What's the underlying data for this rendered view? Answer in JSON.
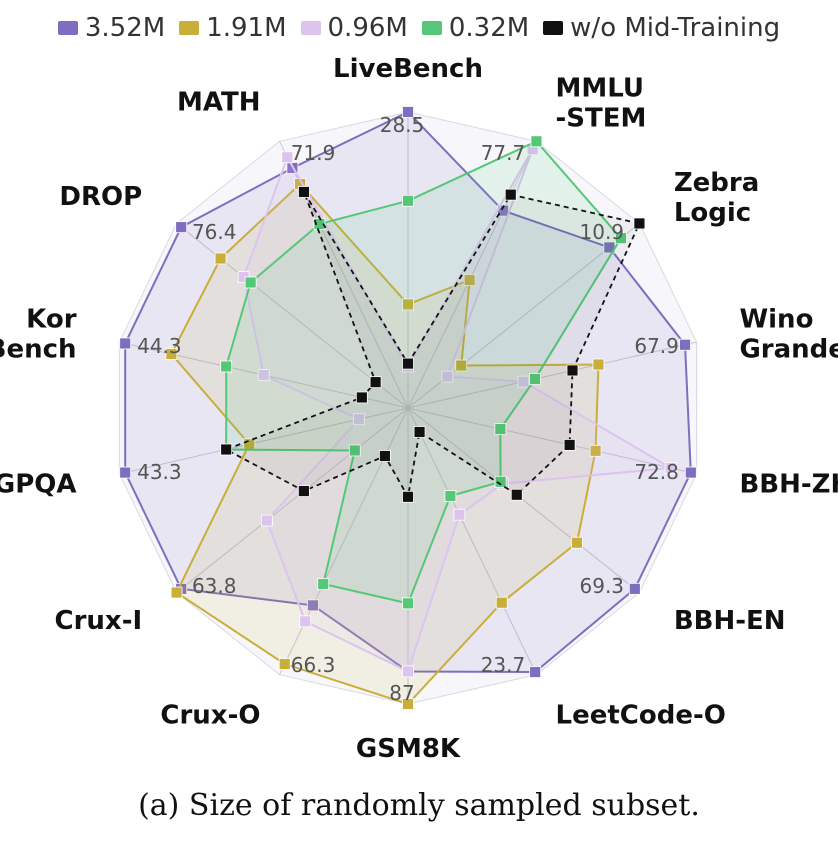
{
  "chart_data": {
    "type": "radar",
    "axes": [
      "LiveBench",
      "MMLU\n-STEM",
      "Zebra\nLogic",
      "Wino\nGrande",
      "BBH-ZH",
      "BBH-EN",
      "LeetCode-O",
      "GSM8K",
      "Crux-O",
      "Crux-I",
      "GPQA",
      "Kor\nBench",
      "DROP",
      "MATH"
    ],
    "axis_max_labels": [
      "28.5",
      "77.7",
      "10.9",
      "67.9",
      "72.8",
      "69.3",
      "23.7",
      "87",
      "66.3",
      "63.8",
      "43.3",
      "44.3",
      "76.4",
      "71.9"
    ],
    "series": [
      {
        "name": "3.52M",
        "color": "#7f6dbf",
        "values": [
          1.0,
          0.74,
          0.87,
          0.96,
          0.98,
          0.98,
          0.99,
          0.89,
          0.74,
          0.98,
          0.98,
          0.98,
          0.98,
          0.9
        ]
      },
      {
        "name": "1.91M",
        "color": "#c9ae3a",
        "values": [
          0.35,
          0.48,
          0.23,
          0.66,
          0.65,
          0.73,
          0.73,
          1.0,
          0.96,
          1.0,
          0.55,
          0.82,
          0.81,
          0.84
        ]
      },
      {
        "name": "0.96M",
        "color": "#dcc4ee",
        "values": [
          0.14,
          0.97,
          0.17,
          0.4,
          0.91,
          0.41,
          0.4,
          0.89,
          0.8,
          0.61,
          0.17,
          0.5,
          0.71,
          0.94
        ]
      },
      {
        "name": "0.32M",
        "color": "#55c878",
        "values": [
          0.7,
          1.0,
          0.92,
          0.44,
          0.32,
          0.4,
          0.33,
          0.66,
          0.66,
          0.23,
          0.63,
          0.63,
          0.68,
          0.69
        ]
      },
      {
        "name": "w/o Mid-Training",
        "color": "#111111",
        "values": [
          0.15,
          0.8,
          1.0,
          0.57,
          0.56,
          0.47,
          0.09,
          0.3,
          0.18,
          0.45,
          0.63,
          0.16,
          0.14,
          0.81
        ]
      }
    ],
    "grid": true,
    "legend": "top",
    "caption": "(a) Size of randomly sampled subset."
  }
}
